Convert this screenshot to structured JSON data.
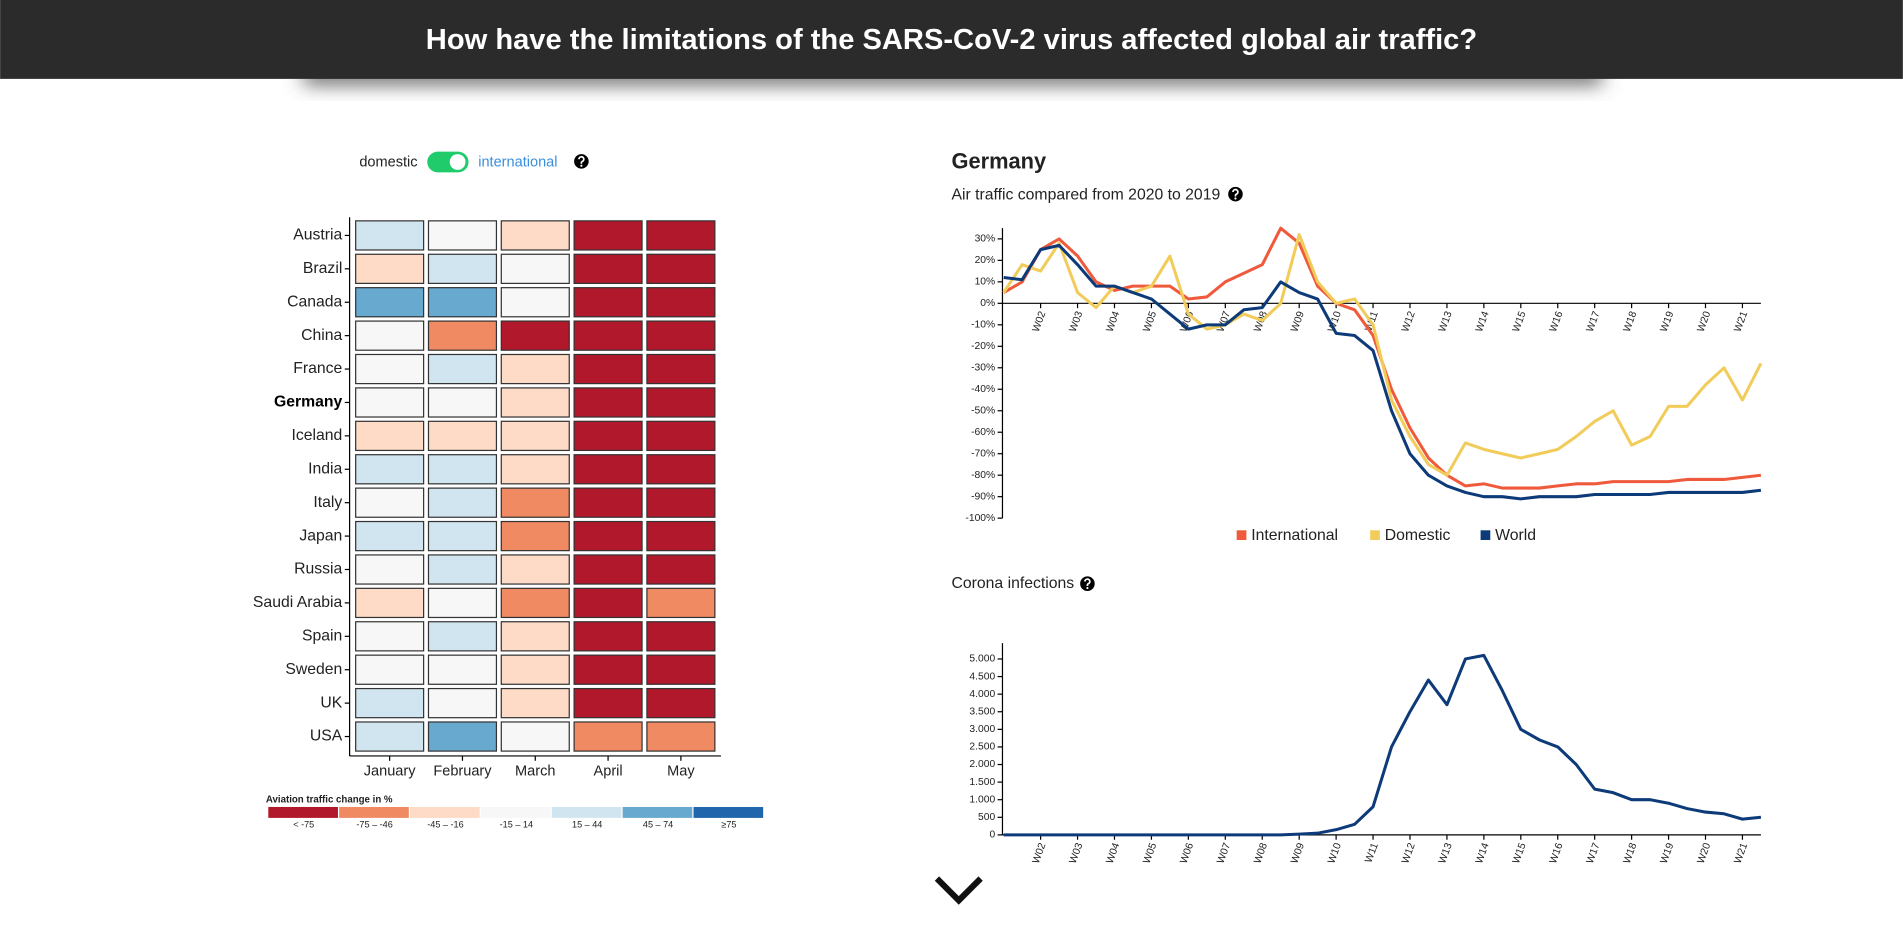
{
  "header": {
    "title": "How have the limitations of the SARS-CoV-2 virus affected global air traffic?"
  },
  "toggle": {
    "left_label": "domestic",
    "right_label": "international",
    "on": true
  },
  "detail": {
    "title": "Germany"
  },
  "chart_data": [
    {
      "type": "heatmap",
      "rows": [
        "Austria",
        "Brazil",
        "Canada",
        "China",
        "France",
        "Germany",
        "Iceland",
        "India",
        "Italy",
        "Japan",
        "Russia",
        "Saudi Arabia",
        "Spain",
        "Sweden",
        "UK",
        "USA"
      ],
      "columns": [
        "January",
        "February",
        "March",
        "April",
        "May"
      ],
      "selected": 5,
      "values": [
        [
          30,
          0,
          -30,
          -90,
          -90
        ],
        [
          -30,
          30,
          0,
          -90,
          -90
        ],
        [
          60,
          60,
          0,
          -90,
          -90
        ],
        [
          0,
          -60,
          -90,
          -90,
          -90
        ],
        [
          0,
          30,
          -30,
          -90,
          -90
        ],
        [
          0,
          0,
          -30,
          -90,
          -90
        ],
        [
          -30,
          -30,
          -30,
          -90,
          -90
        ],
        [
          30,
          30,
          -30,
          -90,
          -90
        ],
        [
          0,
          30,
          -60,
          -90,
          -90
        ],
        [
          30,
          30,
          -60,
          -90,
          -90
        ],
        [
          0,
          30,
          -30,
          -90,
          -90
        ],
        [
          -30,
          0,
          -60,
          -90,
          -60
        ],
        [
          0,
          30,
          -30,
          -90,
          -90
        ],
        [
          0,
          0,
          -30,
          -90,
          -90
        ],
        [
          30,
          0,
          -30,
          -90,
          -90
        ],
        [
          30,
          60,
          0,
          -60,
          -60
        ]
      ],
      "legend": {
        "title": "Aviation traffic change in %",
        "labels": [
          "< -75",
          "-75 – -46",
          "-45 – -16",
          "-15 – 14",
          "15 – 44",
          "45 – 74",
          "≥75"
        ],
        "colors": [
          "#b2182b",
          "#ef8a62",
          "#fddbc7",
          "#f7f7f7",
          "#d1e5f0",
          "#67a9cf",
          "#2166ac"
        ],
        "thresholds": [
          -75,
          -45,
          -15,
          15,
          45,
          75
        ]
      }
    },
    {
      "type": "line",
      "title": "Air traffic compared from 2020 to 2019",
      "x": [
        1,
        1.5,
        2,
        2.5,
        3,
        3.5,
        4,
        4.5,
        5,
        5.5,
        6,
        6.5,
        7,
        7.5,
        8,
        8.5,
        9,
        9.5,
        10,
        10.5,
        11,
        11.5,
        12,
        12.5,
        13,
        13.5,
        14,
        14.5,
        15,
        15.5,
        16,
        16.5,
        17,
        17.5,
        18,
        18.5,
        19,
        19.5,
        20,
        20.5,
        21,
        21.5
      ],
      "series": [
        {
          "name": "International",
          "color": "#f05a3c",
          "values": [
            5,
            10,
            25,
            30,
            22,
            10,
            6,
            8,
            8,
            8,
            2,
            3,
            10,
            14,
            18,
            35,
            28,
            8,
            0,
            -3,
            -15,
            -40,
            -58,
            -72,
            -80,
            -85,
            -84,
            -86,
            -86,
            -86,
            -85,
            -84,
            -84,
            -83,
            -83,
            -83,
            -83,
            -82,
            -82,
            -82,
            -81,
            -80
          ]
        },
        {
          "name": "Domestic",
          "color": "#f2cc5a",
          "values": [
            5,
            18,
            15,
            28,
            5,
            -2,
            8,
            5,
            8,
            22,
            -5,
            -12,
            -10,
            -5,
            -8,
            0,
            32,
            10,
            0,
            2,
            -10,
            -45,
            -62,
            -75,
            -80,
            -65,
            -68,
            -70,
            -72,
            -70,
            -68,
            -62,
            -55,
            -50,
            -66,
            -62,
            -48,
            -48,
            -38,
            -30,
            -45,
            -28
          ]
        },
        {
          "name": "World",
          "color": "#0d3a78",
          "values": [
            12,
            11,
            25,
            27,
            18,
            8,
            8,
            5,
            2,
            -5,
            -12,
            -10,
            -10,
            -3,
            -2,
            10,
            5,
            2,
            -14,
            -15,
            -22,
            -50,
            -70,
            -80,
            -85,
            -88,
            -90,
            -90,
            -91,
            -90,
            -90,
            -90,
            -89,
            -89,
            -89,
            -89,
            -88,
            -88,
            -88,
            -88,
            -88,
            -87
          ]
        }
      ],
      "xlim": [
        1,
        21.5
      ],
      "xticks": [
        {
          "value": 2,
          "label": "W02"
        },
        {
          "value": 3,
          "label": "W03"
        },
        {
          "value": 4,
          "label": "W04"
        },
        {
          "value": 5,
          "label": "W05"
        },
        {
          "value": 6,
          "label": "W06"
        },
        {
          "value": 7,
          "label": "W07"
        },
        {
          "value": 8,
          "label": "W08"
        },
        {
          "value": 9,
          "label": "W09"
        },
        {
          "value": 10,
          "label": "W10"
        },
        {
          "value": 11,
          "label": "W11"
        },
        {
          "value": 12,
          "label": "W12"
        },
        {
          "value": 13,
          "label": "W13"
        },
        {
          "value": 14,
          "label": "W14"
        },
        {
          "value": 15,
          "label": "W15"
        },
        {
          "value": 16,
          "label": "W16"
        },
        {
          "value": 17,
          "label": "W17"
        },
        {
          "value": 18,
          "label": "W18"
        },
        {
          "value": 19,
          "label": "W19"
        },
        {
          "value": 20,
          "label": "W20"
        },
        {
          "value": 21,
          "label": "W21"
        }
      ],
      "ylim": [
        -100,
        35
      ],
      "yticks": [
        {
          "value": 30,
          "label": "30%"
        },
        {
          "value": 20,
          "label": "20%"
        },
        {
          "value": 10,
          "label": "10%"
        },
        {
          "value": 0,
          "label": "0%"
        },
        {
          "value": -10,
          "label": "-10%"
        },
        {
          "value": -20,
          "label": "-20%"
        },
        {
          "value": -30,
          "label": "-30%"
        },
        {
          "value": -40,
          "label": "-40%"
        },
        {
          "value": -50,
          "label": "-50%"
        },
        {
          "value": -60,
          "label": "-60%"
        },
        {
          "value": -70,
          "label": "-70%"
        },
        {
          "value": -80,
          "label": "-80%"
        },
        {
          "value": -90,
          "label": "-90%"
        },
        {
          "value": -100,
          "label": "-100%"
        }
      ]
    },
    {
      "type": "line",
      "title": "Corona infections",
      "x": [
        1,
        1.5,
        2,
        2.5,
        3,
        3.5,
        4,
        4.5,
        5,
        5.5,
        6,
        6.5,
        7,
        7.5,
        8,
        8.5,
        9,
        9.5,
        10,
        10.5,
        11,
        11.5,
        12,
        12.5,
        13,
        13.5,
        14,
        14.5,
        15,
        15.5,
        16,
        16.5,
        17,
        17.5,
        18,
        18.5,
        19,
        19.5,
        20,
        20.5,
        21,
        21.5
      ],
      "series": [
        {
          "color": "#0d3a78",
          "values": [
            0,
            0,
            0,
            0,
            0,
            0,
            0,
            0,
            0,
            0,
            0,
            0,
            0,
            0,
            0,
            0,
            20,
            50,
            150,
            300,
            800,
            2500,
            3500,
            4400,
            3700,
            5000,
            5100,
            4100,
            3000,
            2700,
            2500,
            2000,
            1300,
            1200,
            1000,
            1000,
            900,
            750,
            650,
            600,
            450,
            500
          ]
        }
      ],
      "xlim": [
        1,
        21.5
      ],
      "xticks": [
        {
          "value": 2,
          "label": "W02"
        },
        {
          "value": 3,
          "label": "W03"
        },
        {
          "value": 4,
          "label": "W04"
        },
        {
          "value": 5,
          "label": "W05"
        },
        {
          "value": 6,
          "label": "W06"
        },
        {
          "value": 7,
          "label": "W07"
        },
        {
          "value": 8,
          "label": "W08"
        },
        {
          "value": 9,
          "label": "W09"
        },
        {
          "value": 10,
          "label": "W10"
        },
        {
          "value": 11,
          "label": "W11"
        },
        {
          "value": 12,
          "label": "W12"
        },
        {
          "value": 13,
          "label": "W13"
        },
        {
          "value": 14,
          "label": "W14"
        },
        {
          "value": 15,
          "label": "W15"
        },
        {
          "value": 16,
          "label": "W16"
        },
        {
          "value": 17,
          "label": "W17"
        },
        {
          "value": 18,
          "label": "W18"
        },
        {
          "value": 19,
          "label": "W19"
        },
        {
          "value": 20,
          "label": "W20"
        },
        {
          "value": 21,
          "label": "W21"
        }
      ],
      "ylim": [
        0,
        5450
      ],
      "yticks": [
        0,
        500,
        {
          "value": 1000,
          "label": "1.000"
        },
        {
          "value": 1500,
          "label": "1.500"
        },
        {
          "value": 2000,
          "label": "2.000"
        },
        {
          "value": 2500,
          "label": "2.500"
        },
        {
          "value": 3000,
          "label": "3.000"
        },
        {
          "value": 3500,
          "label": "3.500"
        },
        {
          "value": 4000,
          "label": "4.000"
        },
        {
          "value": 4500,
          "label": "4.500"
        },
        {
          "value": 5000,
          "label": "5.000"
        }
      ]
    }
  ]
}
